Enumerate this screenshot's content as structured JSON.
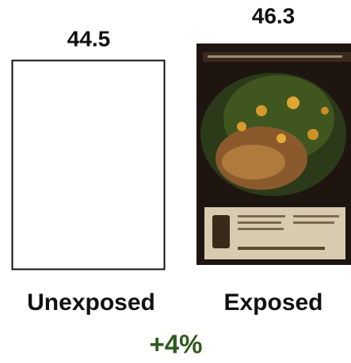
{
  "items": [
    {
      "value": "44.5",
      "label": "Unexposed"
    },
    {
      "value": "46.3",
      "label": "Exposed"
    }
  ],
  "change": "+4%"
}
